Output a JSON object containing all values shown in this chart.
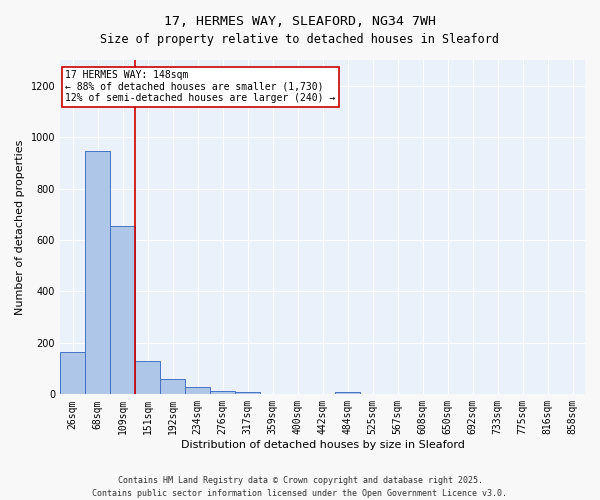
{
  "title": "17, HERMES WAY, SLEAFORD, NG34 7WH",
  "subtitle": "Size of property relative to detached houses in Sleaford",
  "xlabel": "Distribution of detached houses by size in Sleaford",
  "ylabel": "Number of detached properties",
  "footer1": "Contains HM Land Registry data © Crown copyright and database right 2025.",
  "footer2": "Contains public sector information licensed under the Open Government Licence v3.0.",
  "bar_labels": [
    "26sqm",
    "68sqm",
    "109sqm",
    "151sqm",
    "192sqm",
    "234sqm",
    "276sqm",
    "317sqm",
    "359sqm",
    "400sqm",
    "442sqm",
    "484sqm",
    "525sqm",
    "567sqm",
    "608sqm",
    "650sqm",
    "692sqm",
    "733sqm",
    "775sqm",
    "816sqm",
    "858sqm"
  ],
  "bar_values": [
    163,
    945,
    655,
    130,
    58,
    30,
    14,
    10,
    0,
    0,
    0,
    8,
    0,
    0,
    0,
    0,
    0,
    0,
    0,
    0,
    0
  ],
  "bar_color": "#aec6e8",
  "bar_edge_color": "#4472c4",
  "background_color": "#eaf1fb",
  "grid_color": "#ffffff",
  "fig_background": "#f8f8f8",
  "vline_x": 2.5,
  "vline_color": "#cc0000",
  "annotation_line1": "17 HERMES WAY: 148sqm",
  "annotation_line2": "← 88% of detached houses are smaller (1,730)",
  "annotation_line3": "12% of semi-detached houses are larger (240) →",
  "annotation_box_color": "#ffffff",
  "annotation_box_edge": "#cc0000",
  "ylim": [
    0,
    1300
  ],
  "yticks": [
    0,
    200,
    400,
    600,
    800,
    1000,
    1200
  ],
  "title_fontsize": 9.5,
  "subtitle_fontsize": 8.5,
  "axis_label_fontsize": 8,
  "tick_fontsize": 7,
  "annotation_fontsize": 7,
  "footer_fontsize": 6
}
